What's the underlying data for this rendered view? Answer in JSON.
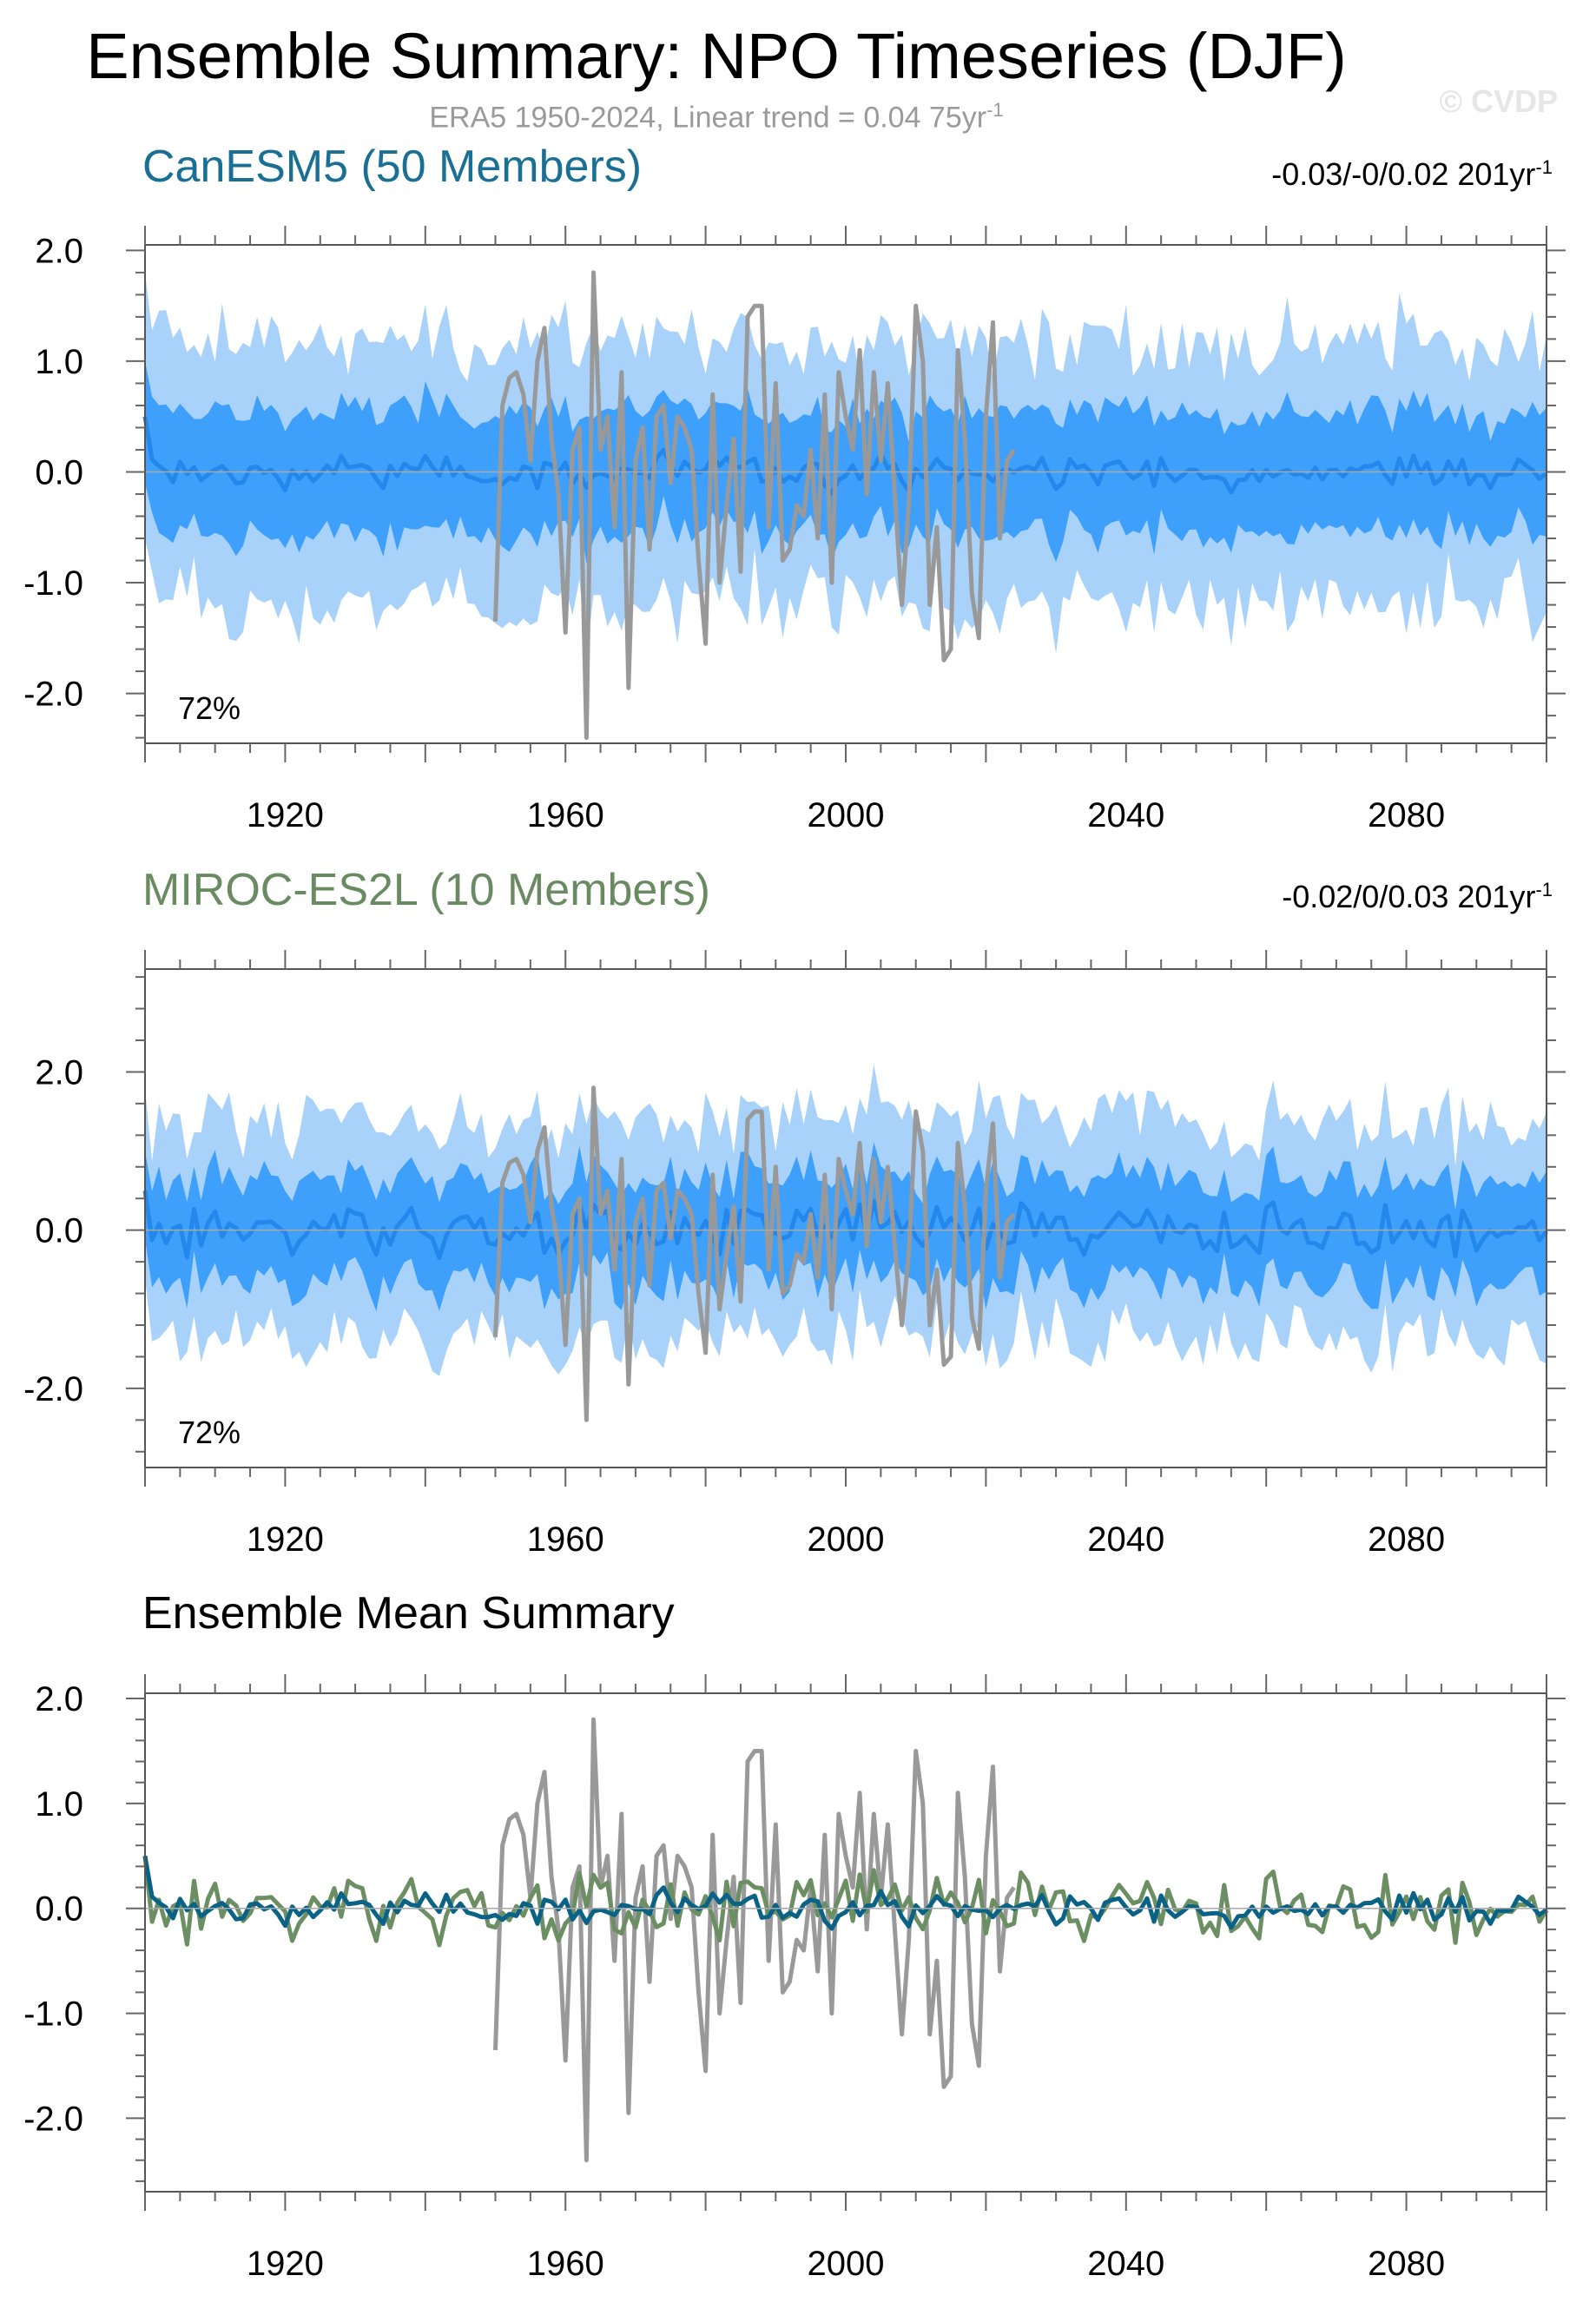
{
  "page": {
    "title": "Ensemble Summary: NPO Timeseries (DJF)",
    "subtitle_text": "ERA5 1950-2024, Linear trend = 0.04 75yr",
    "subtitle_sup": "-1",
    "watermark": "© CVDP"
  },
  "colors": {
    "canesm5_title": "#1a6f94",
    "miroc_title": "#6a8b62",
    "light_band": "#a8d2fa",
    "dark_band": "#3ea0fb",
    "ensemble_mean_line": "#2387eb",
    "obs_line": "#999999",
    "canesm5_line": "#0a6387",
    "miroc_line": "#6b8e62"
  },
  "chart_data": [
    {
      "id": "canesm5",
      "type": "area",
      "title": "CanESM5 (50 Members)",
      "trend_text": "-0.03/-0/0.02 201yr",
      "trend_sup": "-1",
      "inset_label": "72%",
      "x_range": [
        1900,
        2100
      ],
      "ylim": [
        -2.45,
        2.05
      ],
      "yticks": [
        -2.0,
        -1.0,
        0.0,
        1.0,
        2.0
      ],
      "ytick_labels": [
        "-2.0",
        "-1.0",
        "0.0",
        "1.0",
        "2.0"
      ],
      "xticks": [
        1920,
        1960,
        2000,
        2040,
        2080
      ],
      "xtick_labels": [
        "1920",
        "1960",
        "2000",
        "2040",
        "2080"
      ],
      "series": [
        "ensemble-range (light)",
        "interquartile (dark)",
        "ensemble-mean",
        "ERA5 observations"
      ]
    },
    {
      "id": "miroc",
      "type": "area",
      "title": "MIROC-ES2L (10 Members)",
      "trend_text": "-0.02/0/0.03 201yr",
      "trend_sup": "-1",
      "inset_label": "72%",
      "x_range": [
        1900,
        2100
      ],
      "ylim": [
        -3.0,
        3.3
      ],
      "yticks": [
        -2.0,
        0.0,
        2.0
      ],
      "ytick_labels": [
        "-2.0",
        "0.0",
        "2.0"
      ],
      "xticks": [
        1920,
        1960,
        2000,
        2040,
        2080
      ],
      "xtick_labels": [
        "1920",
        "1960",
        "2000",
        "2040",
        "2080"
      ],
      "series": [
        "ensemble-range (light)",
        "interquartile (dark)",
        "ensemble-mean",
        "ERA5 observations"
      ]
    },
    {
      "id": "mean",
      "type": "line",
      "title": "Ensemble Mean Summary",
      "x_range": [
        1900,
        2100
      ],
      "ylim": [
        -2.7,
        2.05
      ],
      "yticks": [
        -2.0,
        -1.0,
        0.0,
        1.0,
        2.0
      ],
      "ytick_labels": [
        "-2.0",
        "-1.0",
        "0.0",
        "1.0",
        "2.0"
      ],
      "xticks": [
        1920,
        1960,
        2000,
        2040,
        2080
      ],
      "xtick_labels": [
        "1920",
        "1960",
        "2000",
        "2040",
        "2080"
      ],
      "series": [
        "ERA5 observations",
        "CanESM5 ensemble mean",
        "MIROC-ES2L ensemble mean"
      ]
    }
  ]
}
